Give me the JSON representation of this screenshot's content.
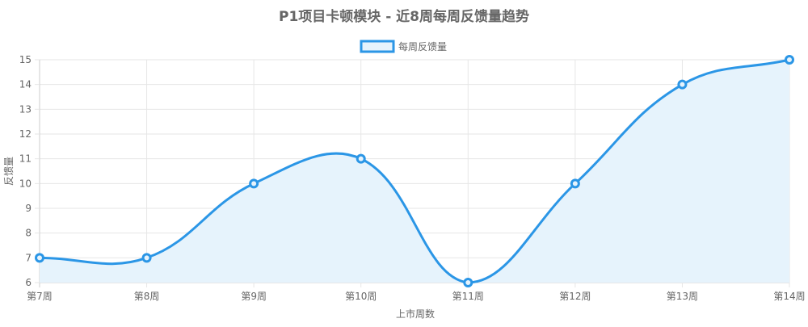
{
  "chart_data": {
    "type": "line",
    "title": "P1项目卡顿模块 - 近8周每周反馈量趋势",
    "xlabel": "上市周数",
    "ylabel": "反馈量",
    "categories": [
      "第7周",
      "第8周",
      "第9周",
      "第10周",
      "第11周",
      "第12周",
      "第13周",
      "第14周"
    ],
    "series": [
      {
        "name": "每周反馈量",
        "values": [
          7,
          7,
          10,
          11,
          6,
          10,
          14,
          15
        ],
        "color": "#2b96e6",
        "fill": "#e6f3fc"
      }
    ],
    "ylim": [
      6,
      15
    ],
    "yticks": [
      6,
      7,
      8,
      9,
      10,
      11,
      12,
      13,
      14,
      15
    ],
    "grid": true,
    "legend": "top-center",
    "smooth": true,
    "filled": true
  }
}
